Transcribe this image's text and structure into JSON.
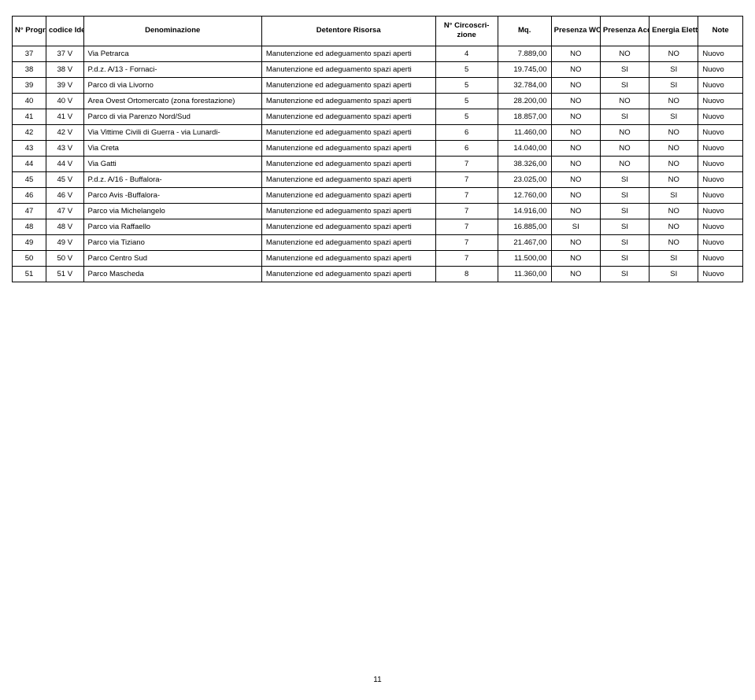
{
  "table": {
    "columns": [
      "N° Progr.",
      "codice Ident.",
      "Denominazione",
      "Detentore Risorsa",
      "N° Circoscri-\nzione",
      "Mq.",
      "Presenza WC",
      "Presenza Acqua",
      "Energia Elettrica",
      "Note"
    ],
    "rows": [
      [
        "37",
        "37 V",
        "Via Petrarca",
        "Manutenzione ed adeguamento spazi aperti",
        "4",
        "7.889,00",
        "NO",
        "NO",
        "NO",
        "Nuovo"
      ],
      [
        "38",
        "38 V",
        "P.d.z. A/13 - Fornaci-",
        "Manutenzione ed adeguamento spazi aperti",
        "5",
        "19.745,00",
        "NO",
        "SI",
        "SI",
        "Nuovo"
      ],
      [
        "39",
        "39 V",
        "Parco di via Livorno",
        "Manutenzione ed adeguamento spazi aperti",
        "5",
        "32.784,00",
        "NO",
        "SI",
        "SI",
        "Nuovo"
      ],
      [
        "40",
        "40 V",
        "Area Ovest Ortomercato (zona forestazione)",
        "Manutenzione ed adeguamento spazi aperti",
        "5",
        "28.200,00",
        "NO",
        "NO",
        "NO",
        "Nuovo"
      ],
      [
        "41",
        "41 V",
        "Parco di via Parenzo Nord/Sud",
        "Manutenzione ed adeguamento spazi aperti",
        "5",
        "18.857,00",
        "NO",
        "SI",
        "SI",
        "Nuovo"
      ],
      [
        "42",
        "42 V",
        "Via Vittime Civili di Guerra - via Lunardi-",
        "Manutenzione ed adeguamento spazi aperti",
        "6",
        "11.460,00",
        "NO",
        "NO",
        "NO",
        "Nuovo"
      ],
      [
        "43",
        "43 V",
        "Via Creta",
        "Manutenzione ed adeguamento spazi aperti",
        "6",
        "14.040,00",
        "NO",
        "NO",
        "NO",
        "Nuovo"
      ],
      [
        "44",
        "44 V",
        "Via Gatti",
        "Manutenzione ed adeguamento spazi aperti",
        "7",
        "38.326,00",
        "NO",
        "NO",
        "NO",
        "Nuovo"
      ],
      [
        "45",
        "45 V",
        "P.d.z. A/16 - Buffalora-",
        "Manutenzione ed adeguamento spazi aperti",
        "7",
        "23.025,00",
        "NO",
        "SI",
        "NO",
        "Nuovo"
      ],
      [
        "46",
        "46 V",
        "Parco Avis -Buffalora-",
        "Manutenzione ed adeguamento spazi aperti",
        "7",
        "12.760,00",
        "NO",
        "SI",
        "SI",
        "Nuovo"
      ],
      [
        "47",
        "47 V",
        "Parco via Michelangelo",
        "Manutenzione ed adeguamento spazi aperti",
        "7",
        "14.916,00",
        "NO",
        "SI",
        "NO",
        "Nuovo"
      ],
      [
        "48",
        "48 V",
        "Parco via Raffaello",
        "Manutenzione ed adeguamento spazi aperti",
        "7",
        "16.885,00",
        "SI",
        "SI",
        "NO",
        "Nuovo"
      ],
      [
        "49",
        "49 V",
        "Parco via Tiziano",
        "Manutenzione ed adeguamento spazi aperti",
        "7",
        "21.467,00",
        "NO",
        "SI",
        "NO",
        "Nuovo"
      ],
      [
        "50",
        "50 V",
        "Parco Centro Sud",
        "Manutenzione ed adeguamento spazi aperti",
        "7",
        "11.500,00",
        "NO",
        "SI",
        "SI",
        "Nuovo"
      ],
      [
        "51",
        "51 V",
        "Parco Mascheda",
        "Manutenzione ed adeguamento spazi aperti",
        "8",
        "11.360,00",
        "NO",
        "SI",
        "SI",
        "Nuovo"
      ]
    ],
    "col_align": [
      "center",
      "center",
      "left",
      "left",
      "center",
      "right",
      "center",
      "center",
      "center",
      "left"
    ],
    "border_color": "#000000",
    "background_color": "#ffffff",
    "font_size_pt": 8,
    "header_font_size_pt": 8
  },
  "page_number": "11"
}
